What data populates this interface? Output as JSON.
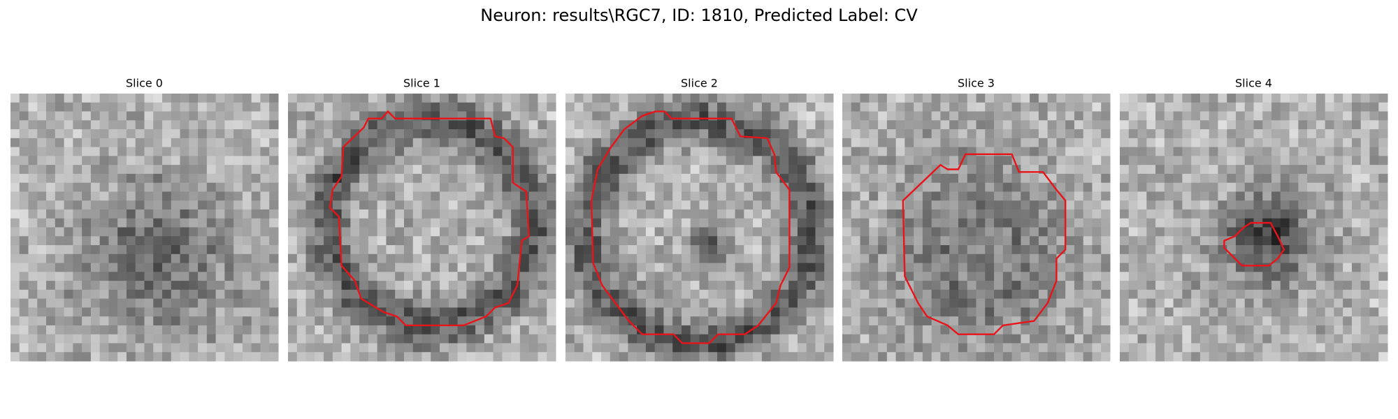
{
  "title": "Neuron: results\\RGC7, ID: 1810, Predicted Label: CV",
  "panels": [
    {
      "title": "Slice 0"
    },
    {
      "title": "Slice 1"
    },
    {
      "title": "Slice 2"
    },
    {
      "title": "Slice 3"
    },
    {
      "title": "Slice 4"
    }
  ]
}
